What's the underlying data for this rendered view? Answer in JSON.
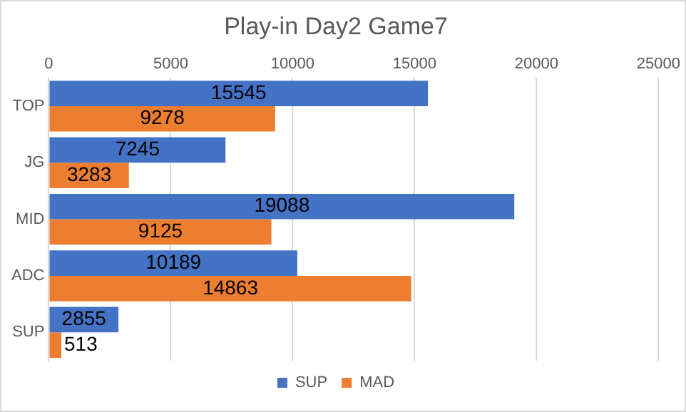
{
  "chart_data": {
    "type": "bar",
    "title": "Play-in Day2 Game7",
    "orientation": "horizontal",
    "categories": [
      "TOP",
      "JG",
      "MID",
      "ADC",
      "SUP"
    ],
    "series": [
      {
        "name": "SUP",
        "color": "#4472c4",
        "values": [
          15545,
          7245,
          19088,
          10189,
          2855
        ]
      },
      {
        "name": "MAD",
        "color": "#ed7d31",
        "values": [
          9278,
          3283,
          9125,
          14863,
          513
        ]
      }
    ],
    "xlim": [
      0,
      25000
    ],
    "xticks": [
      0,
      5000,
      10000,
      15000,
      20000,
      25000
    ],
    "grid": "x",
    "legend": "bottom",
    "data_labels": true
  }
}
